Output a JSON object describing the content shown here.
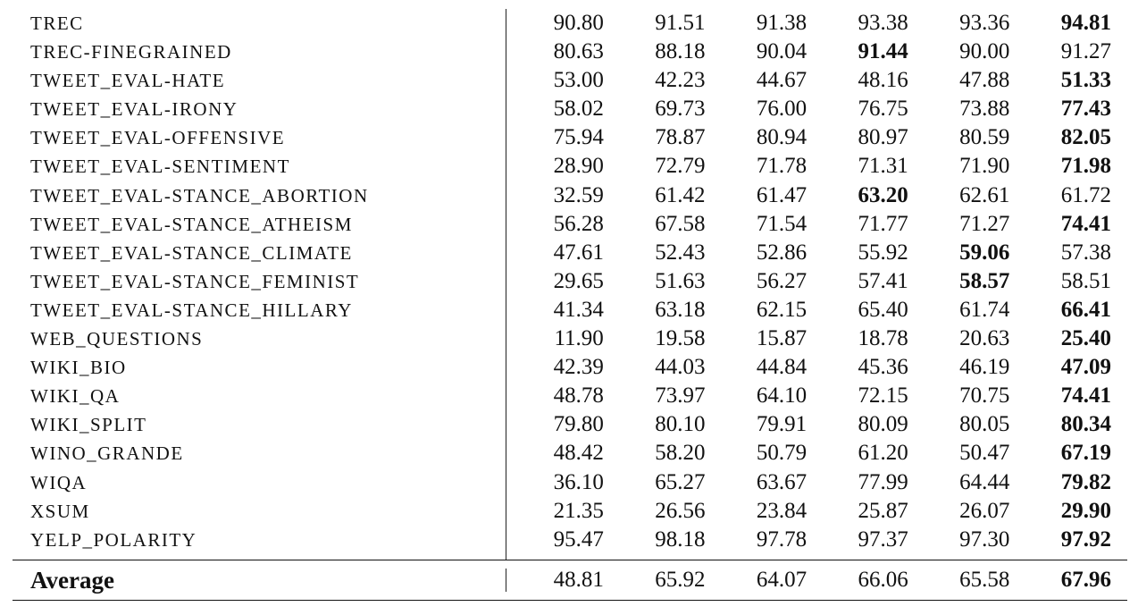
{
  "table": {
    "rows": [
      {
        "name": "TREC",
        "values": [
          "90.80",
          "91.51",
          "91.38",
          "93.38",
          "93.36",
          "94.81"
        ],
        "bold": [
          5
        ]
      },
      {
        "name": "TREC-FINEGRAINED",
        "values": [
          "80.63",
          "88.18",
          "90.04",
          "91.44",
          "90.00",
          "91.27"
        ],
        "bold": [
          3
        ]
      },
      {
        "name": "TWEET_EVAL-HATE",
        "values": [
          "53.00",
          "42.23",
          "44.67",
          "48.16",
          "47.88",
          "51.33"
        ],
        "bold": [
          5
        ]
      },
      {
        "name": "TWEET_EVAL-IRONY",
        "values": [
          "58.02",
          "69.73",
          "76.00",
          "76.75",
          "73.88",
          "77.43"
        ],
        "bold": [
          5
        ]
      },
      {
        "name": "TWEET_EVAL-OFFENSIVE",
        "values": [
          "75.94",
          "78.87",
          "80.94",
          "80.97",
          "80.59",
          "82.05"
        ],
        "bold": [
          5
        ]
      },
      {
        "name": "TWEET_EVAL-SENTIMENT",
        "values": [
          "28.90",
          "72.79",
          "71.78",
          "71.31",
          "71.90",
          "71.98"
        ],
        "bold": [
          5
        ]
      },
      {
        "name": "TWEET_EVAL-STANCE_ABORTION",
        "values": [
          "32.59",
          "61.42",
          "61.47",
          "63.20",
          "62.61",
          "61.72"
        ],
        "bold": [
          3
        ]
      },
      {
        "name": "TWEET_EVAL-STANCE_ATHEISM",
        "values": [
          "56.28",
          "67.58",
          "71.54",
          "71.77",
          "71.27",
          "74.41"
        ],
        "bold": [
          5
        ]
      },
      {
        "name": "TWEET_EVAL-STANCE_CLIMATE",
        "values": [
          "47.61",
          "52.43",
          "52.86",
          "55.92",
          "59.06",
          "57.38"
        ],
        "bold": [
          4
        ]
      },
      {
        "name": "TWEET_EVAL-STANCE_FEMINIST",
        "values": [
          "29.65",
          "51.63",
          "56.27",
          "57.41",
          "58.57",
          "58.51"
        ],
        "bold": [
          4
        ]
      },
      {
        "name": "TWEET_EVAL-STANCE_HILLARY",
        "values": [
          "41.34",
          "63.18",
          "62.15",
          "65.40",
          "61.74",
          "66.41"
        ],
        "bold": [
          5
        ]
      },
      {
        "name": "WEB_QUESTIONS",
        "values": [
          "11.90",
          "19.58",
          "15.87",
          "18.78",
          "20.63",
          "25.40"
        ],
        "bold": [
          5
        ]
      },
      {
        "name": "WIKI_BIO",
        "values": [
          "42.39",
          "44.03",
          "44.84",
          "45.36",
          "46.19",
          "47.09"
        ],
        "bold": [
          5
        ]
      },
      {
        "name": "WIKI_QA",
        "values": [
          "48.78",
          "73.97",
          "64.10",
          "72.15",
          "70.75",
          "74.41"
        ],
        "bold": [
          5
        ]
      },
      {
        "name": "WIKI_SPLIT",
        "values": [
          "79.80",
          "80.10",
          "79.91",
          "80.09",
          "80.05",
          "80.34"
        ],
        "bold": [
          5
        ]
      },
      {
        "name": "WINO_GRANDE",
        "values": [
          "48.42",
          "58.20",
          "50.79",
          "61.20",
          "50.47",
          "67.19"
        ],
        "bold": [
          5
        ]
      },
      {
        "name": "WIQA",
        "values": [
          "36.10",
          "65.27",
          "63.67",
          "77.99",
          "64.44",
          "79.82"
        ],
        "bold": [
          5
        ]
      },
      {
        "name": "XSUM",
        "values": [
          "21.35",
          "26.56",
          "23.84",
          "25.87",
          "26.07",
          "29.90"
        ],
        "bold": [
          5
        ]
      },
      {
        "name": "YELP_POLARITY",
        "values": [
          "95.47",
          "98.18",
          "97.78",
          "97.37",
          "97.30",
          "97.92"
        ],
        "bold": [
          5
        ]
      }
    ],
    "average": {
      "name": "Average",
      "values": [
        "48.81",
        "65.92",
        "64.07",
        "66.06",
        "65.58",
        "67.96"
      ],
      "bold": [
        5
      ]
    }
  }
}
